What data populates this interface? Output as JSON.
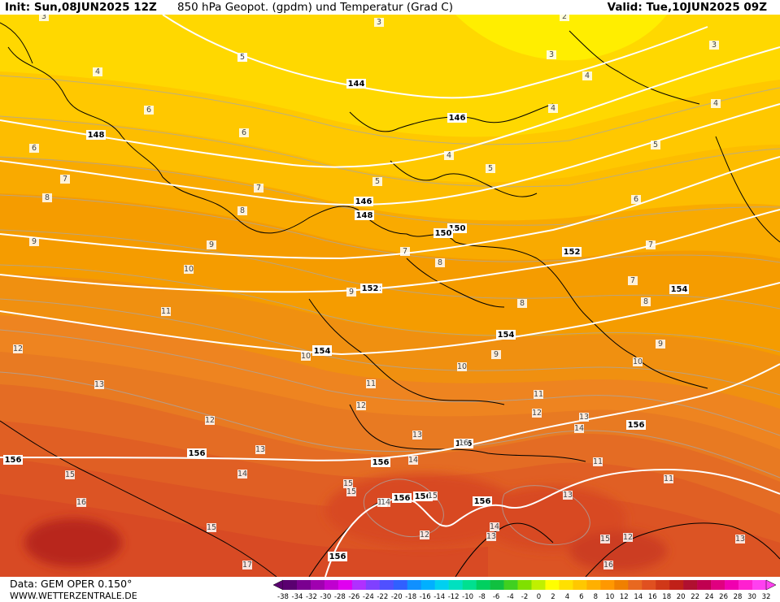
{
  "header": {
    "init": "Init: Sun,08JUN2025 12Z",
    "title": "850 hPa Geopot. (gpdm) und Temperatur (Grad C)",
    "valid": "Valid: Tue,10JUN2025 09Z"
  },
  "footer": {
    "data_source": "Data: GEM OPER 0.150°",
    "website": "WWW.WETTERZENTRALE.DE"
  },
  "legend": {
    "ticks": [
      "-38",
      "-34",
      "-32",
      "-30",
      "-28",
      "-26",
      "-24",
      "-22",
      "-20",
      "-18",
      "-16",
      "-14",
      "-12",
      "-10",
      "-8",
      "-6",
      "-4",
      "-2",
      "0",
      "2",
      "4",
      "6",
      "8",
      "10",
      "12",
      "14",
      "16",
      "18",
      "20",
      "22",
      "24",
      "26",
      "28",
      "30",
      "32"
    ],
    "colors": [
      "#5a0070",
      "#7a0090",
      "#a000b0",
      "#c000d0",
      "#e000f0",
      "#b030ff",
      "#8040ff",
      "#5050ff",
      "#3060ff",
      "#1090ff",
      "#00b0ff",
      "#00d0f0",
      "#00e0c0",
      "#00e090",
      "#00d060",
      "#10c040",
      "#40d020",
      "#80e000",
      "#c0f000",
      "#ffff00",
      "#ffe000",
      "#ffc800",
      "#ffb000",
      "#ff9800",
      "#f08000",
      "#e86820",
      "#e05020",
      "#d03818",
      "#c02018",
      "#b01030",
      "#c00050",
      "#e00080",
      "#f000b0",
      "#ff20d0",
      "#ff40f0"
    ]
  },
  "map": {
    "temperature_colors": {
      "t3": "#ffee00",
      "t4": "#ffd800",
      "t5": "#ffc800",
      "t6": "#fdbd00",
      "t7": "#f9aa00",
      "t8": "#f59c00",
      "t9": "#f09010",
      "t10": "#ee8420",
      "t11": "#e87a22",
      "t12": "#e46c24",
      "t13": "#e05f24",
      "t14": "#dc5424",
      "t15": "#d84a24",
      "t16": "#cc3e20",
      "t17": "#b8261c"
    },
    "geopotential_labels": [
      "144",
      "146",
      "146",
      "148",
      "148",
      "150",
      "150",
      "152",
      "152",
      "152",
      "154",
      "154",
      "154",
      "154",
      "156",
      "156",
      "156",
      "156",
      "156",
      "156",
      "156",
      "156",
      "156"
    ],
    "temperature_labels": [
      "3",
      "3",
      "3",
      "3",
      "2",
      "4",
      "4",
      "4",
      "4",
      "4",
      "5",
      "5",
      "5",
      "5",
      "5",
      "6",
      "6",
      "6",
      "6",
      "7",
      "7",
      "7",
      "7",
      "7",
      "8",
      "8",
      "8",
      "8",
      "8",
      "9",
      "9",
      "9",
      "9",
      "9",
      "10",
      "10",
      "10",
      "10",
      "11",
      "11",
      "11",
      "11",
      "11",
      "11",
      "12",
      "12",
      "12",
      "12",
      "12",
      "12",
      "13",
      "13",
      "13",
      "13",
      "13",
      "13",
      "13",
      "14",
      "14",
      "14",
      "14",
      "14",
      "15",
      "15",
      "15",
      "15",
      "15",
      "15",
      "16",
      "16",
      "16",
      "17"
    ]
  }
}
